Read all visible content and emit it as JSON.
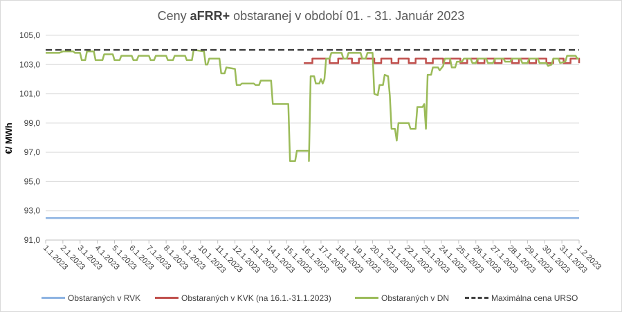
{
  "chart_data": {
    "type": "line",
    "title_prefix": "Ceny ",
    "title_bold": "aFRR+",
    "title_suffix": " obstaranej v období 01. - 31. Január 2023",
    "xlabel": "",
    "ylabel": "€/ MWh",
    "ylim": [
      91.0,
      105.0
    ],
    "y_ticks": [
      "91,0",
      "93,0",
      "95,0",
      "97,0",
      "99,0",
      "101,0",
      "103,0",
      "105,0"
    ],
    "grid": true,
    "legend_position": "bottom",
    "x_ticks": [
      "1.1.2023",
      "2.1.2023",
      "3.1.2023",
      "4.1.2023",
      "5.1.2023",
      "6.1.2023",
      "7.1.2023",
      "8.1.2023",
      "9.1.2023",
      "10.1.2023",
      "11.1.2023",
      "12.1.2023",
      "13.1.2023",
      "14.1.2023",
      "15.1.2023",
      "16.1.2023",
      "17.1.2023",
      "18.1.2023",
      "19.1.2023",
      "20.1.2023",
      "21.1.2023",
      "22.1.2023",
      "23.1.2023",
      "24.1.2023",
      "25.1.2023",
      "26.1.2023",
      "27.1.2023",
      "28.1.2023",
      "29.1.2023",
      "30.1.2023",
      "31.1.2023",
      "1.2.2023"
    ],
    "x_unit": "days since 1.1.2023",
    "series": [
      {
        "name": "Obstaraných v RVK",
        "color": "#8db3e2",
        "points": [
          [
            0,
            92.5
          ],
          [
            31,
            92.5
          ]
        ]
      },
      {
        "name": "Obstaraných v KVK (na 16.1.-31.1.2023)",
        "color": "#c0504d",
        "points": [
          [
            15.0,
            103.1
          ],
          [
            15.5,
            103.1
          ],
          [
            15.5,
            103.4
          ],
          [
            16.5,
            103.4
          ],
          [
            16.5,
            103.1
          ],
          [
            17.0,
            103.1
          ],
          [
            17.0,
            103.4
          ],
          [
            17.8,
            103.4
          ],
          [
            17.8,
            103.1
          ],
          [
            18.2,
            103.1
          ],
          [
            18.2,
            103.4
          ],
          [
            19.1,
            103.4
          ],
          [
            19.1,
            103.1
          ],
          [
            19.5,
            103.1
          ],
          [
            19.5,
            103.4
          ],
          [
            20.1,
            103.4
          ],
          [
            20.1,
            103.1
          ],
          [
            20.5,
            103.1
          ],
          [
            20.5,
            103.4
          ],
          [
            21.1,
            103.4
          ],
          [
            21.1,
            103.1
          ],
          [
            21.5,
            103.1
          ],
          [
            21.5,
            103.4
          ],
          [
            22.1,
            103.4
          ],
          [
            22.1,
            103.1
          ],
          [
            22.5,
            103.1
          ],
          [
            22.5,
            103.4
          ],
          [
            23.1,
            103.4
          ],
          [
            23.1,
            103.1
          ],
          [
            23.5,
            103.1
          ],
          [
            23.5,
            103.4
          ],
          [
            24.1,
            103.4
          ],
          [
            24.1,
            103.1
          ],
          [
            24.5,
            103.1
          ],
          [
            24.5,
            103.4
          ],
          [
            25.1,
            103.4
          ],
          [
            25.1,
            103.1
          ],
          [
            25.5,
            103.1
          ],
          [
            25.5,
            103.4
          ],
          [
            26.1,
            103.4
          ],
          [
            26.1,
            103.1
          ],
          [
            26.5,
            103.1
          ],
          [
            26.5,
            103.4
          ],
          [
            27.1,
            103.4
          ],
          [
            27.1,
            103.1
          ],
          [
            27.5,
            103.1
          ],
          [
            27.5,
            103.4
          ],
          [
            28.1,
            103.4
          ],
          [
            28.1,
            103.1
          ],
          [
            28.5,
            103.1
          ],
          [
            28.5,
            103.4
          ],
          [
            29.1,
            103.4
          ],
          [
            29.1,
            103.1
          ],
          [
            29.5,
            103.1
          ],
          [
            29.5,
            103.4
          ],
          [
            30.1,
            103.4
          ],
          [
            30.1,
            103.1
          ],
          [
            30.5,
            103.1
          ],
          [
            30.5,
            103.4
          ],
          [
            31.0,
            103.4
          ],
          [
            31.0,
            103.1
          ]
        ]
      },
      {
        "name": "Obstaraných v DN",
        "color": "#9bbb59",
        "points": [
          [
            0.0,
            103.8
          ],
          [
            0.8,
            103.8
          ],
          [
            1.0,
            103.9
          ],
          [
            1.6,
            103.9
          ],
          [
            1.7,
            103.8
          ],
          [
            2.0,
            103.8
          ],
          [
            2.1,
            103.3
          ],
          [
            2.3,
            103.3
          ],
          [
            2.4,
            103.9
          ],
          [
            2.8,
            103.9
          ],
          [
            2.9,
            103.3
          ],
          [
            3.3,
            103.3
          ],
          [
            3.4,
            103.7
          ],
          [
            3.9,
            103.7
          ],
          [
            4.0,
            103.3
          ],
          [
            4.3,
            103.3
          ],
          [
            4.4,
            103.6
          ],
          [
            5.0,
            103.6
          ],
          [
            5.1,
            103.3
          ],
          [
            5.3,
            103.3
          ],
          [
            5.4,
            103.6
          ],
          [
            6.0,
            103.6
          ],
          [
            6.1,
            103.3
          ],
          [
            6.3,
            103.3
          ],
          [
            6.4,
            103.6
          ],
          [
            7.0,
            103.6
          ],
          [
            7.1,
            103.3
          ],
          [
            7.4,
            103.3
          ],
          [
            7.5,
            103.6
          ],
          [
            8.1,
            103.6
          ],
          [
            8.2,
            103.3
          ],
          [
            8.5,
            103.3
          ],
          [
            8.6,
            104.0
          ],
          [
            9.2,
            103.9
          ],
          [
            9.3,
            103.0
          ],
          [
            9.4,
            103.0
          ],
          [
            9.5,
            103.4
          ],
          [
            10.1,
            103.4
          ],
          [
            10.2,
            102.4
          ],
          [
            10.4,
            102.4
          ],
          [
            10.5,
            102.8
          ],
          [
            11.0,
            102.7
          ],
          [
            11.1,
            101.6
          ],
          [
            11.3,
            101.6
          ],
          [
            11.4,
            101.7
          ],
          [
            12.1,
            101.7
          ],
          [
            12.2,
            101.6
          ],
          [
            12.4,
            101.6
          ],
          [
            12.5,
            101.9
          ],
          [
            13.1,
            101.9
          ],
          [
            13.2,
            100.3
          ],
          [
            14.1,
            100.3
          ],
          [
            14.2,
            96.4
          ],
          [
            14.5,
            96.4
          ],
          [
            14.6,
            97.1
          ],
          [
            15.3,
            97.1
          ],
          [
            15.3,
            96.4
          ],
          [
            15.4,
            102.2
          ],
          [
            15.6,
            102.2
          ],
          [
            15.7,
            101.7
          ],
          [
            15.9,
            101.7
          ],
          [
            16.0,
            102.0
          ],
          [
            16.1,
            101.7
          ],
          [
            16.2,
            102.0
          ],
          [
            16.3,
            103.4
          ],
          [
            16.5,
            103.4
          ],
          [
            16.6,
            103.8
          ],
          [
            17.2,
            103.8
          ],
          [
            17.3,
            103.4
          ],
          [
            17.5,
            103.4
          ],
          [
            17.6,
            103.8
          ],
          [
            18.3,
            103.8
          ],
          [
            18.4,
            103.4
          ],
          [
            18.6,
            103.4
          ],
          [
            18.7,
            103.8
          ],
          [
            19.0,
            103.8
          ],
          [
            19.1,
            101.0
          ],
          [
            19.3,
            100.9
          ],
          [
            19.4,
            101.6
          ],
          [
            19.6,
            101.6
          ],
          [
            19.7,
            102.3
          ],
          [
            19.9,
            102.2
          ],
          [
            20.0,
            100.9
          ],
          [
            20.1,
            98.6
          ],
          [
            20.3,
            98.6
          ],
          [
            20.4,
            97.8
          ],
          [
            20.5,
            99.0
          ],
          [
            21.1,
            99.0
          ],
          [
            21.2,
            98.6
          ],
          [
            21.5,
            98.6
          ],
          [
            21.6,
            100.1
          ],
          [
            21.9,
            100.1
          ],
          [
            22.0,
            100.3
          ],
          [
            22.1,
            98.6
          ],
          [
            22.2,
            102.3
          ],
          [
            22.4,
            102.3
          ],
          [
            22.5,
            102.8
          ],
          [
            22.8,
            102.8
          ],
          [
            22.9,
            102.6
          ],
          [
            23.1,
            102.9
          ],
          [
            23.2,
            103.4
          ],
          [
            23.5,
            103.4
          ],
          [
            23.6,
            102.8
          ],
          [
            23.8,
            102.8
          ],
          [
            23.9,
            103.2
          ],
          [
            24.2,
            103.2
          ],
          [
            24.3,
            103.4
          ],
          [
            24.7,
            103.4
          ],
          [
            24.8,
            103.1
          ],
          [
            25.0,
            103.1
          ],
          [
            25.1,
            103.4
          ],
          [
            25.6,
            103.4
          ],
          [
            25.7,
            103.1
          ],
          [
            26.0,
            103.1
          ],
          [
            26.1,
            103.4
          ],
          [
            26.6,
            103.4
          ],
          [
            26.7,
            103.2
          ],
          [
            27.0,
            103.2
          ],
          [
            27.1,
            103.4
          ],
          [
            27.6,
            103.4
          ],
          [
            27.7,
            103.1
          ],
          [
            28.0,
            103.1
          ],
          [
            28.1,
            103.4
          ],
          [
            28.6,
            103.4
          ],
          [
            28.7,
            103.1
          ],
          [
            29.1,
            103.1
          ],
          [
            29.2,
            102.9
          ],
          [
            29.4,
            103.0
          ],
          [
            29.5,
            103.4
          ],
          [
            29.8,
            103.4
          ],
          [
            29.9,
            103.1
          ],
          [
            30.2,
            103.2
          ],
          [
            30.3,
            103.6
          ],
          [
            30.8,
            103.6
          ],
          [
            30.9,
            103.4
          ],
          [
            31.0,
            103.4
          ]
        ]
      },
      {
        "name": "Maximálna cena URSO",
        "color": "#404040",
        "dashed": true,
        "points": [
          [
            0,
            104.0
          ],
          [
            31,
            104.0
          ]
        ]
      }
    ]
  }
}
